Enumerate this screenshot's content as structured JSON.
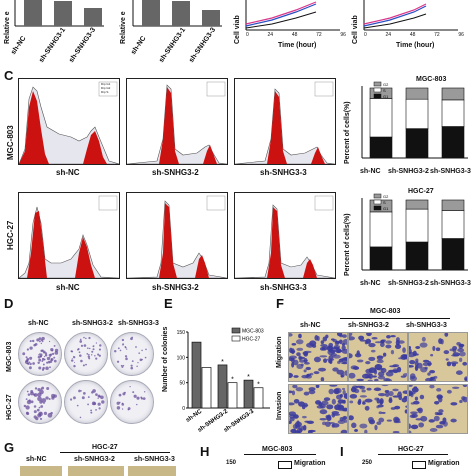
{
  "panel_letters": {
    "C": "C",
    "D": "D",
    "E": "E",
    "F": "F",
    "G": "G",
    "H": "H",
    "I": "I"
  },
  "top_row": {
    "ylabel_left": "Relative e",
    "ylabel_mid": "Relative e",
    "ylabel_cv1": "Cell viab",
    "ylabel_cv2": "Cell viab",
    "xlabels_left": [
      "sh-NC",
      "sh-SNHG3-1",
      "sh-SNHG3-3"
    ],
    "xlabels_mid": [
      "sh-NC",
      "sh-SNHG3-1",
      "sh-SNHG3-3"
    ],
    "time_label": "Time (hour)",
    "time_ticks": [
      "0",
      "24",
      "48",
      "72",
      "96"
    ]
  },
  "flow": {
    "row_labels": [
      "MGC-803",
      "HGC-27"
    ],
    "col_labels": [
      "sh-NC",
      "sh-SNHG3-2",
      "sh-SNHG3-3"
    ],
    "legend": [
      "Dip G1",
      "Dip G2",
      "Dip S"
    ]
  },
  "cycle_charts": [
    {
      "title": "MGC-803",
      "ylabel": "Percent of cells(%)",
      "categories": [
        "sh-NC",
        "sh-SNHG3-2",
        "sh-SNHG3-3"
      ],
      "legend": [
        "G2",
        "S",
        "G1"
      ]
    },
    {
      "title": "HGC-27",
      "ylabel": "Percent of cells(%)",
      "categories": [
        "sh-NC",
        "sh-SNHG3-2",
        "sh-SNHG3-3"
      ],
      "legend": [
        "G2",
        "S",
        "G1"
      ]
    }
  ],
  "colony": {
    "col_labels": [
      "sh-NC",
      "sh-SNHG3-2",
      "sh-SNHG3-3"
    ],
    "row_labels": [
      "MGC-803",
      "HGC-27"
    ]
  },
  "colony_chart": {
    "ylabel": "Number of colonies",
    "legend": [
      "MGC-803",
      "HGC-27"
    ],
    "star": "*"
  },
  "migration": {
    "header": "MGC-803",
    "col_labels": [
      "sh-NC",
      "sh-SNHG3-2",
      "sh-SNHG3-3"
    ],
    "row_labels": [
      "Migration",
      "Invasion"
    ]
  },
  "bottom": {
    "g_header": "HGC-27",
    "g_cols": [
      "sh-NC",
      "sh-SNHG3-2",
      "sh-SNHG3-3"
    ],
    "h_header": "MGC-803",
    "h_legend": "Migration",
    "h_tick": "150",
    "i_header": "HGC-27",
    "i_legend": "Migration",
    "i_tick": "250"
  },
  "chart_data": [
    {
      "type": "bar",
      "categories": [
        "sh-NC",
        "sh-SNHG3-2",
        "sh-SNHG3-3"
      ],
      "series": [
        {
          "name": "MGC-803",
          "values": [
            130,
            85,
            55
          ]
        },
        {
          "name": "HGC-27",
          "values": [
            80,
            50,
            40
          ]
        }
      ],
      "ylabel": "Number of colonies",
      "ylim": [
        0,
        150
      ],
      "yticks": [
        0,
        50,
        100,
        150
      ]
    },
    {
      "type": "bar",
      "title": "MGC-803",
      "categories": [
        "sh-NC",
        "sh-SNHG3-2",
        "sh-SNHG3-3"
      ],
      "series": [
        {
          "name": "G1",
          "values": [
            30,
            42,
            45
          ]
        },
        {
          "name": "S",
          "values": [
            55,
            42,
            38
          ]
        },
        {
          "name": "G2",
          "values": [
            15,
            16,
            17
          ]
        }
      ],
      "ylabel": "Percent of cells(%)",
      "ylim": [
        0,
        100
      ]
    },
    {
      "type": "bar",
      "title": "HGC-27",
      "categories": [
        "sh-NC",
        "sh-SNHG3-2",
        "sh-SNHG3-3"
      ],
      "series": [
        {
          "name": "G1",
          "values": [
            33,
            40,
            45
          ]
        },
        {
          "name": "S",
          "values": [
            50,
            47,
            40
          ]
        },
        {
          "name": "G2",
          "values": [
            17,
            13,
            15
          ]
        }
      ],
      "ylabel": "Percent of cells(%)",
      "ylim": [
        0,
        100
      ]
    },
    {
      "type": "bar",
      "categories": [
        "sh-NC",
        "sh-SNHG3-1",
        "sh-SNHG3-3"
      ],
      "values": [
        1.0,
        0.95,
        0.6
      ],
      "ylabel": "Relative e"
    },
    {
      "type": "bar",
      "categories": [
        "sh-NC",
        "sh-SNHG3-1",
        "sh-SNHG3-3"
      ],
      "values": [
        1.0,
        0.95,
        0.5
      ],
      "ylabel": "Relative e"
    }
  ]
}
